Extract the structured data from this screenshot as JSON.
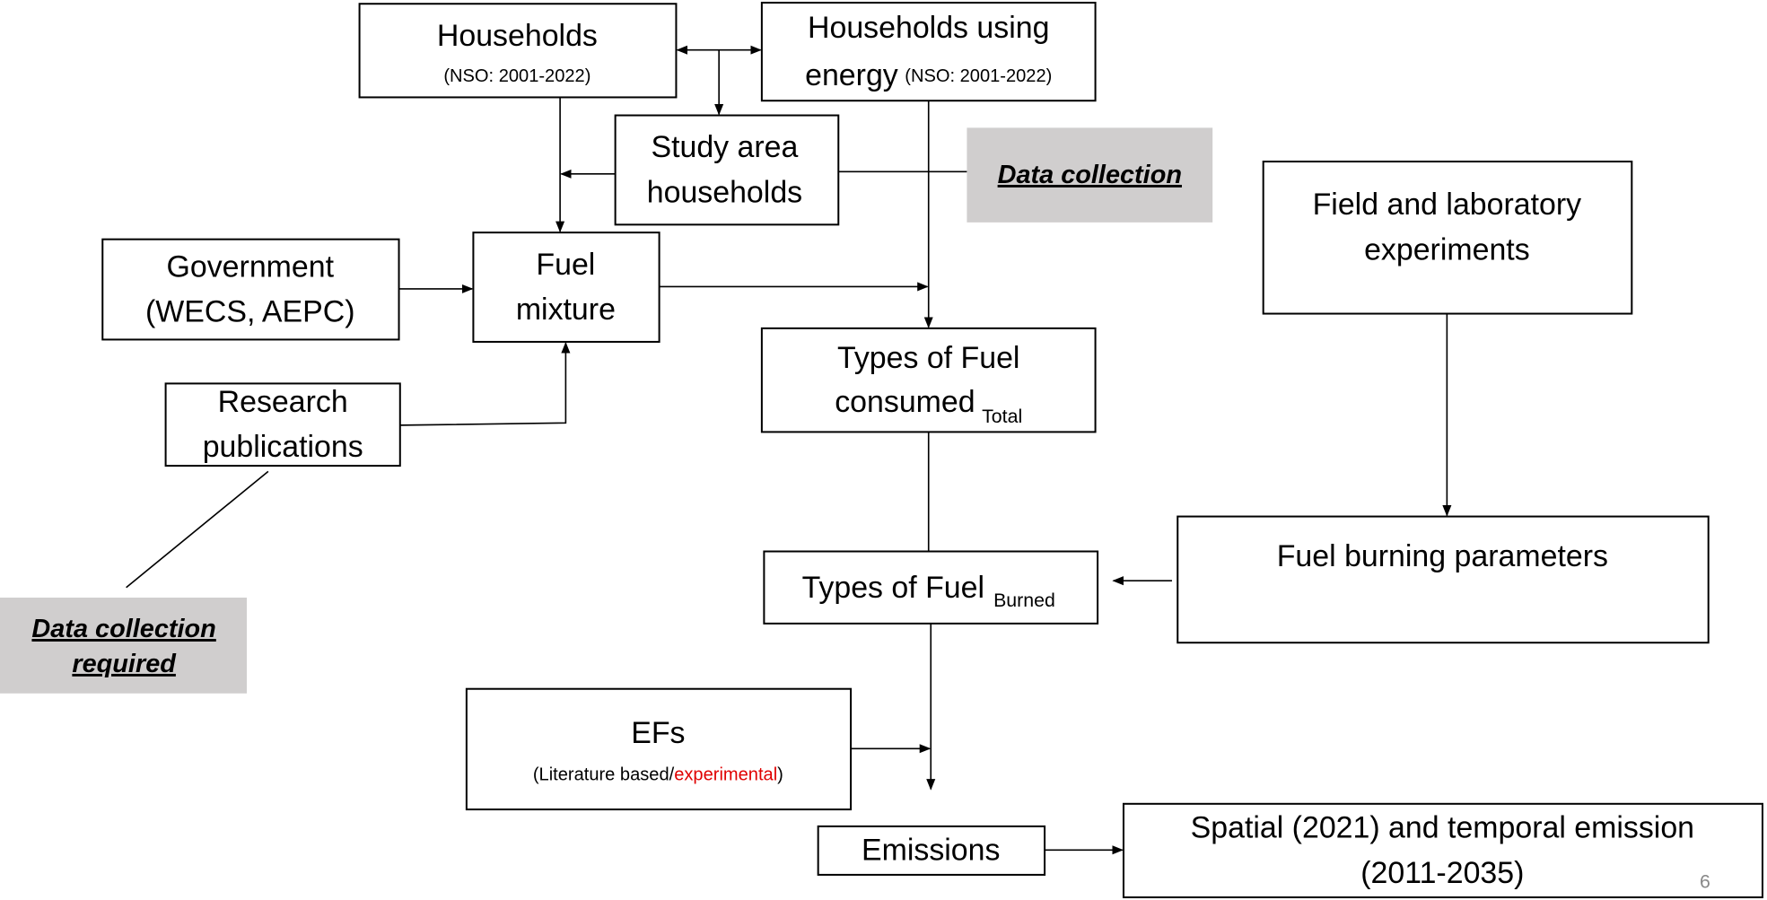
{
  "households": {
    "label": "Households",
    "source": "(NSO: 2001-2022)"
  },
  "households_energy": {
    "lines": [
      "Households using",
      "energy"
    ],
    "source": "(NSO: 2001-2022)"
  },
  "study_area": {
    "lines": [
      "Study area",
      "households"
    ]
  },
  "data_collection": "Data collection",
  "field_experiments": {
    "lines": [
      "Field and laboratory",
      "experiments"
    ]
  },
  "government": {
    "lines": [
      "Government",
      "(WECS, AEPC)"
    ]
  },
  "fuel_mixture": {
    "lines": [
      "Fuel",
      "mixture"
    ]
  },
  "fuel_consumed": {
    "lines": [
      "Types of Fuel",
      "consumed"
    ],
    "subscript": "Total"
  },
  "research": {
    "lines": [
      "Research",
      "publications"
    ]
  },
  "burning_parameters": "Fuel burning parameters",
  "fuel_burned": {
    "label": "Types of Fuel",
    "subscript": "Burned"
  },
  "data_required": {
    "lines": [
      "Data collection",
      "required"
    ]
  },
  "efs": {
    "label": "EFs",
    "note_parts": [
      "(Literature based/",
      "experimental",
      ")"
    ]
  },
  "emissions": "Emissions",
  "spatial": {
    "lines": [
      "Spatial (2021) and temporal emission",
      "(2011-2035)"
    ]
  },
  "page_number": "6"
}
